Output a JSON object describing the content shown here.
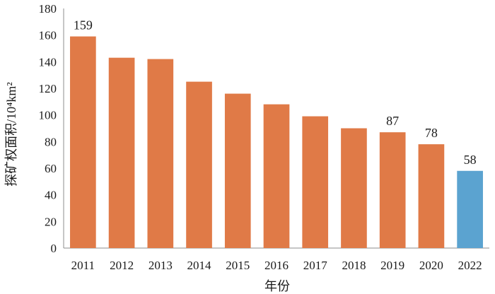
{
  "chart_data": {
    "type": "bar",
    "title": "",
    "xlabel": "年份",
    "ylabel": "探矿权面积/10⁴km²",
    "categories": [
      "2011",
      "2012",
      "2013",
      "2014",
      "2015",
      "2016",
      "2017",
      "2018",
      "2019",
      "2020",
      "2022"
    ],
    "values": [
      159,
      143,
      142,
      125,
      116,
      108,
      99,
      90,
      87,
      78,
      58
    ],
    "data_labels": {
      "2011": "159",
      "2019": "87",
      "2020": "78",
      "2022": "58"
    },
    "ylim": [
      0,
      180
    ],
    "yticks": [
      0,
      20,
      40,
      60,
      80,
      100,
      120,
      140,
      160,
      180
    ],
    "grid": false,
    "colors": {
      "default": "#E07A47",
      "highlight": "#5BA3D0",
      "highlight_category": "2022"
    }
  }
}
